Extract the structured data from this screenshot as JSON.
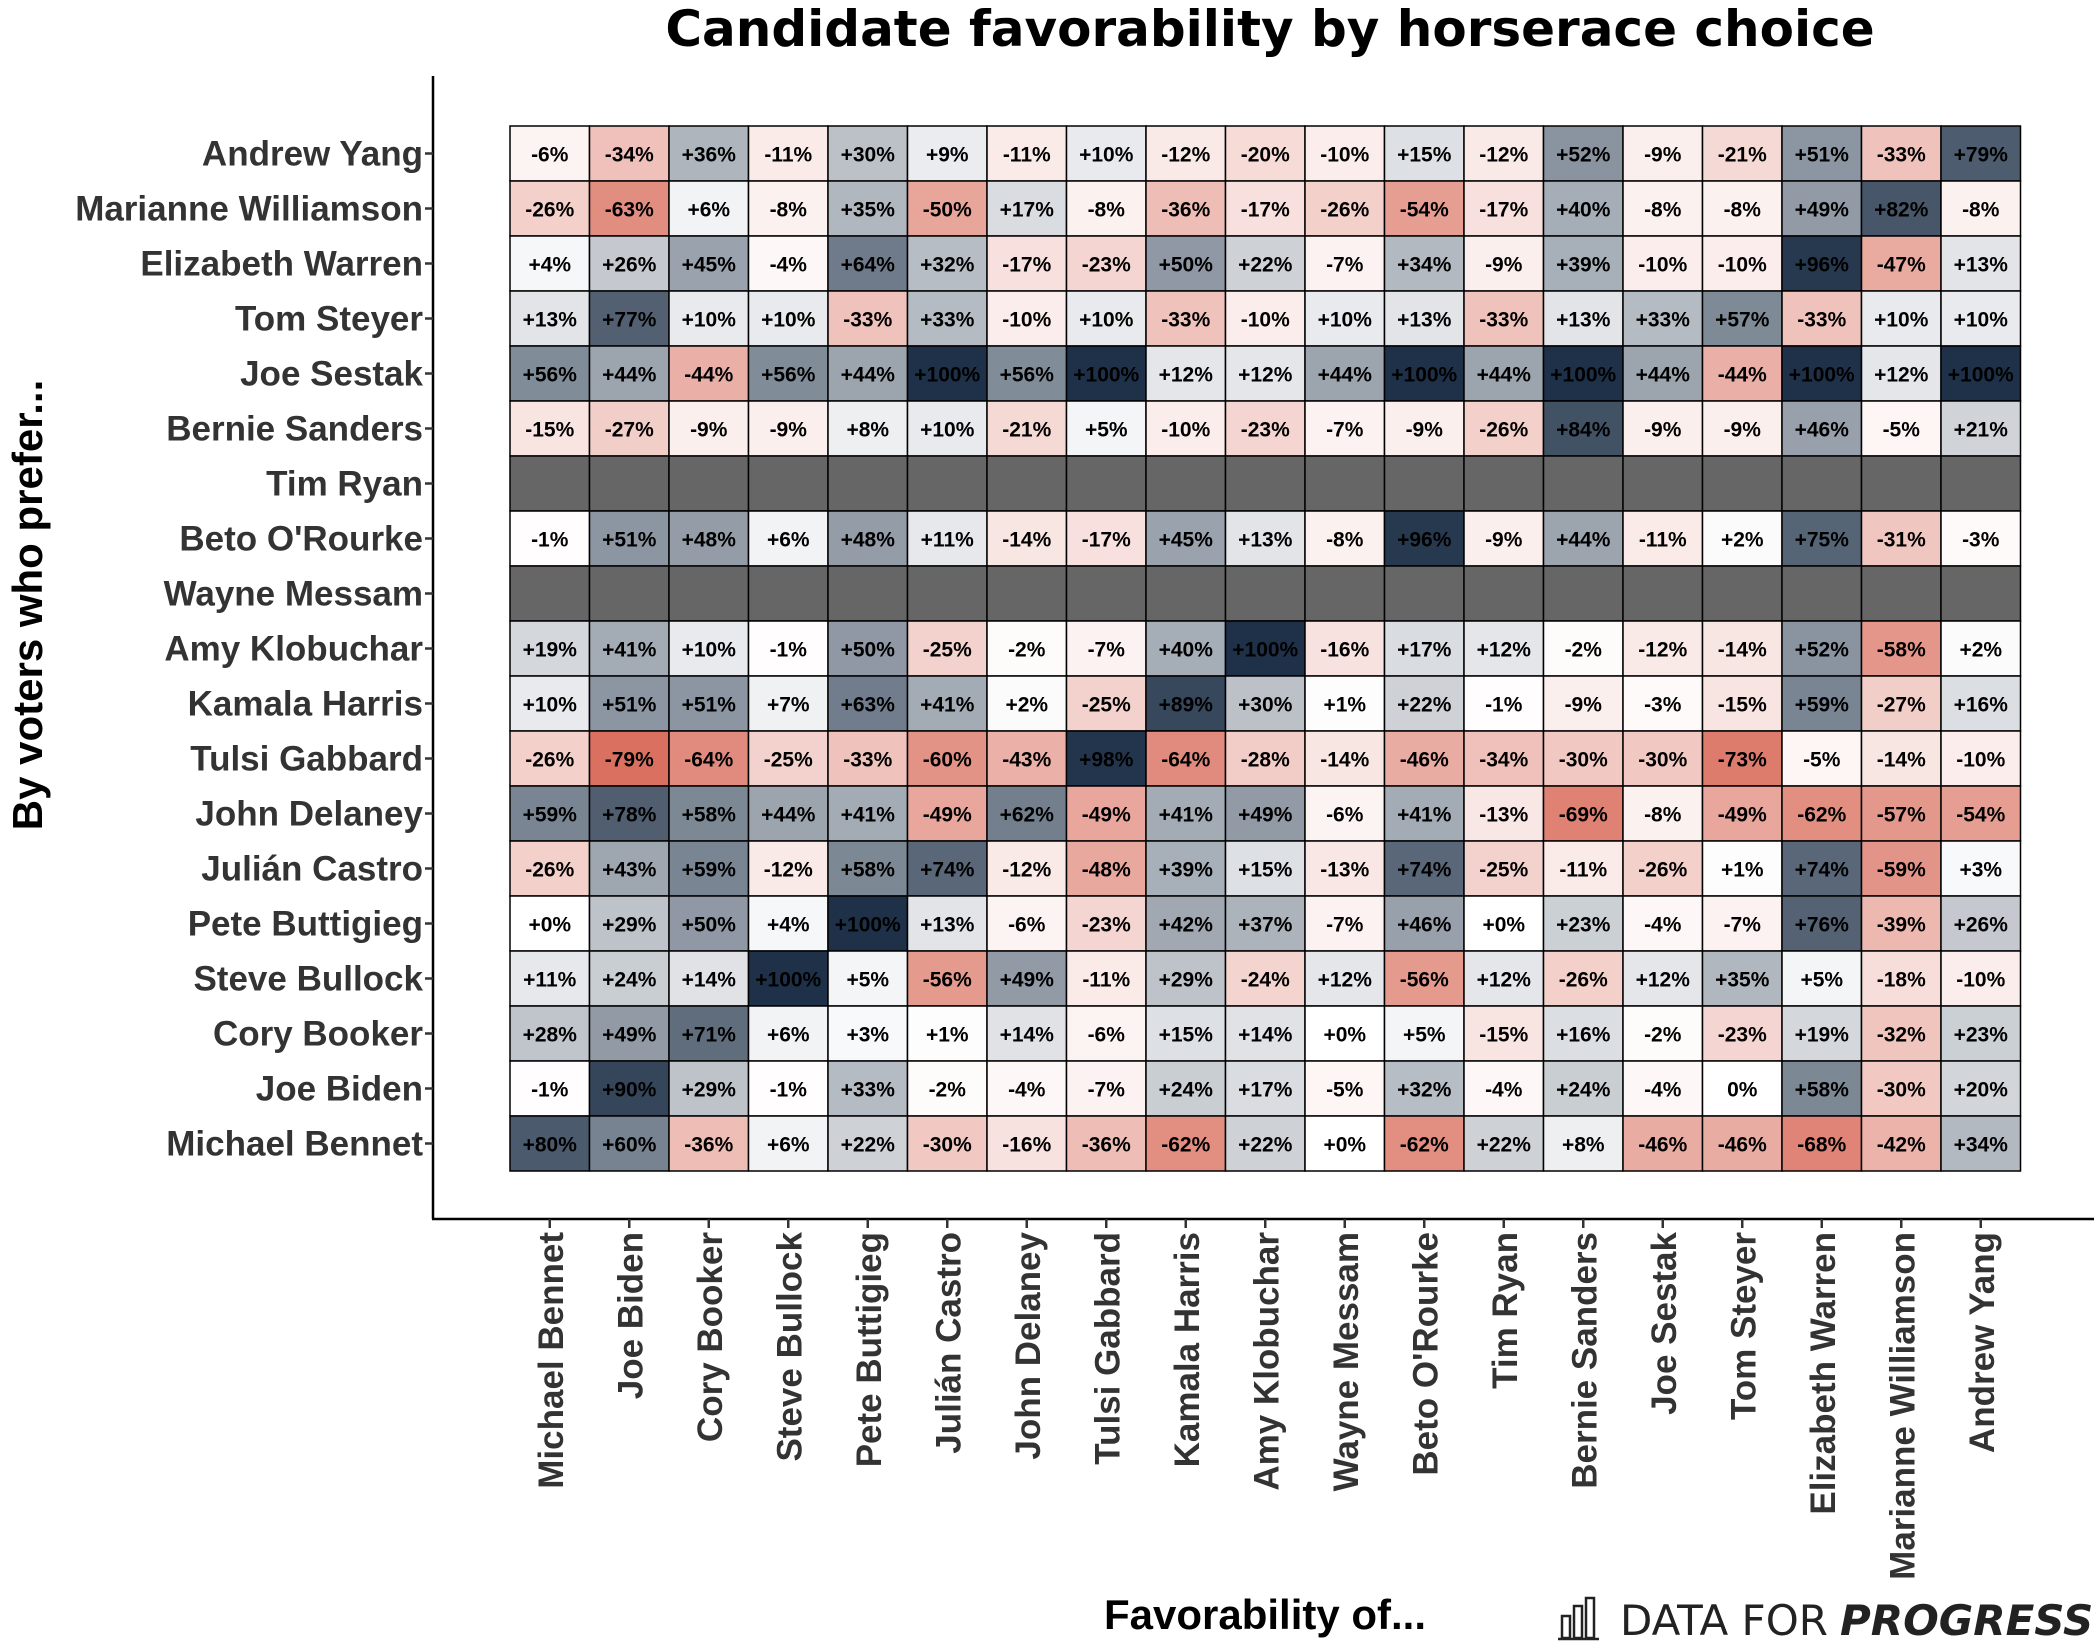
{
  "chart_data": {
    "type": "heatmap",
    "title": "Candidate favorability by horserace choice",
    "xlabel": "Favorability of...",
    "ylabel": "By voters who prefer...",
    "rows": [
      "Andrew Yang",
      "Marianne Williamson",
      "Elizabeth Warren",
      "Tom Steyer",
      "Joe Sestak",
      "Bernie Sanders",
      "Tim Ryan",
      "Beto O'Rourke",
      "Wayne Messam",
      "Amy Klobuchar",
      "Kamala Harris",
      "Tulsi Gabbard",
      "John Delaney",
      "Julián Castro",
      "Pete Buttigieg",
      "Steve Bullock",
      "Cory Booker",
      "Joe Biden",
      "Michael Bennet"
    ],
    "columns": [
      "Michael Bennet",
      "Joe Biden",
      "Cory Booker",
      "Steve Bullock",
      "Pete Buttigieg",
      "Julián Castro",
      "John Delaney",
      "Tulsi Gabbard",
      "Kamala Harris",
      "Amy Klobuchar",
      "Wayne Messam",
      "Beto O'Rourke",
      "Tim Ryan",
      "Bernie Sanders",
      "Joe Sestak",
      "Tom Steyer",
      "Elizabeth Warren",
      "Marianne Williamson",
      "Andrew Yang"
    ],
    "values": [
      [
        "-6%",
        "-34%",
        "+36%",
        "-11%",
        "+30%",
        "+9%",
        "-11%",
        "+10%",
        "-12%",
        "-20%",
        "-10%",
        "+15%",
        "-12%",
        "+52%",
        "-9%",
        "-21%",
        "+51%",
        "-33%",
        "+79%"
      ],
      [
        "-26%",
        "-63%",
        "+6%",
        "-8%",
        "+35%",
        "-50%",
        "+17%",
        "-8%",
        "-36%",
        "-17%",
        "-26%",
        "-54%",
        "-17%",
        "+40%",
        "-8%",
        "-8%",
        "+49%",
        "+82%",
        "-8%"
      ],
      [
        "+4%",
        "+26%",
        "+45%",
        "-4%",
        "+64%",
        "+32%",
        "-17%",
        "-23%",
        "+50%",
        "+22%",
        "-7%",
        "+34%",
        "-9%",
        "+39%",
        "-10%",
        "-10%",
        "+96%",
        "-47%",
        "+13%"
      ],
      [
        "+13%",
        "+77%",
        "+10%",
        "+10%",
        "-33%",
        "+33%",
        "-10%",
        "+10%",
        "-33%",
        "-10%",
        "+10%",
        "+13%",
        "-33%",
        "+13%",
        "+33%",
        "+57%",
        "-33%",
        "+10%",
        "+10%"
      ],
      [
        "+56%",
        "+44%",
        "-44%",
        "+56%",
        "+44%",
        "+100%",
        "+56%",
        "+100%",
        "+12%",
        "+12%",
        "+44%",
        "+100%",
        "+44%",
        "+100%",
        "+44%",
        "-44%",
        "+100%",
        "+12%",
        "+100%"
      ],
      [
        "-15%",
        "-27%",
        "-9%",
        "-9%",
        "+8%",
        "+10%",
        "-21%",
        "+5%",
        "-10%",
        "-23%",
        "-7%",
        "-9%",
        "-26%",
        "+84%",
        "-9%",
        "-9%",
        "+46%",
        "-5%",
        "+21%"
      ],
      null,
      [
        "-1%",
        "+51%",
        "+48%",
        "+6%",
        "+48%",
        "+11%",
        "-14%",
        "-17%",
        "+45%",
        "+13%",
        "-8%",
        "+96%",
        "-9%",
        "+44%",
        "-11%",
        "+2%",
        "+75%",
        "-31%",
        "-3%"
      ],
      null,
      [
        "+19%",
        "+41%",
        "+10%",
        "-1%",
        "+50%",
        "-25%",
        "-2%",
        "-7%",
        "+40%",
        "+100%",
        "-16%",
        "+17%",
        "+12%",
        "-2%",
        "-12%",
        "-14%",
        "+52%",
        "-58%",
        "+2%"
      ],
      [
        "+10%",
        "+51%",
        "+51%",
        "+7%",
        "+63%",
        "+41%",
        "+2%",
        "-25%",
        "+89%",
        "+30%",
        "+1%",
        "+22%",
        "-1%",
        "-9%",
        "-3%",
        "-15%",
        "+59%",
        "-27%",
        "+16%"
      ],
      [
        "-26%",
        "-79%",
        "-64%",
        "-25%",
        "-33%",
        "-60%",
        "-43%",
        "+98%",
        "-64%",
        "-28%",
        "-14%",
        "-46%",
        "-34%",
        "-30%",
        "-30%",
        "-73%",
        "-5%",
        "-14%",
        "-10%"
      ],
      [
        "+59%",
        "+78%",
        "+58%",
        "+44%",
        "+41%",
        "-49%",
        "+62%",
        "-49%",
        "+41%",
        "+49%",
        "-6%",
        "+41%",
        "-13%",
        "-69%",
        "-8%",
        "-49%",
        "-62%",
        "-57%",
        "-54%"
      ],
      [
        "-26%",
        "+43%",
        "+59%",
        "-12%",
        "+58%",
        "+74%",
        "-12%",
        "-48%",
        "+39%",
        "+15%",
        "-13%",
        "+74%",
        "-25%",
        "-11%",
        "-26%",
        "+1%",
        "+74%",
        "-59%",
        "+3%"
      ],
      [
        "+0%",
        "+29%",
        "+50%",
        "+4%",
        "+100%",
        "+13%",
        "-6%",
        "-23%",
        "+42%",
        "+37%",
        "-7%",
        "+46%",
        "+0%",
        "+23%",
        "-4%",
        "-7%",
        "+76%",
        "-39%",
        "+26%"
      ],
      [
        "+11%",
        "+24%",
        "+14%",
        "+100%",
        "+5%",
        "-56%",
        "+49%",
        "-11%",
        "+29%",
        "-24%",
        "+12%",
        "-56%",
        "+12%",
        "-26%",
        "+12%",
        "+35%",
        "+5%",
        "-18%",
        "-10%"
      ],
      [
        "+28%",
        "+49%",
        "+71%",
        "+6%",
        "+3%",
        "+1%",
        "+14%",
        "-6%",
        "+15%",
        "+14%",
        "+0%",
        "+5%",
        "-15%",
        "+16%",
        "-2%",
        "-23%",
        "+19%",
        "-32%",
        "+23%"
      ],
      [
        "-1%",
        "+90%",
        "+29%",
        "-1%",
        "+33%",
        "-2%",
        "-4%",
        "-7%",
        "+24%",
        "+17%",
        "-5%",
        "+32%",
        "-4%",
        "+24%",
        "-4%",
        "0%",
        "+58%",
        "-30%",
        "+20%"
      ],
      [
        "+80%",
        "+60%",
        "-36%",
        "+6%",
        "+22%",
        "-30%",
        "-16%",
        "-36%",
        "-62%",
        "+22%",
        "+0%",
        "-62%",
        "+22%",
        "+8%",
        "-46%",
        "-46%",
        "-68%",
        "-42%",
        "+34%"
      ]
    ],
    "color_scale": {
      "negative": "#d04a35",
      "neutral": "#ffffff",
      "positive": "#1e3148",
      "missing": "#666666"
    },
    "grid": false
  },
  "brand": {
    "prefix": "DATA FOR",
    "emphasis": "PROGRESS",
    "logo_icon": "bar-chart-logo-icon"
  }
}
